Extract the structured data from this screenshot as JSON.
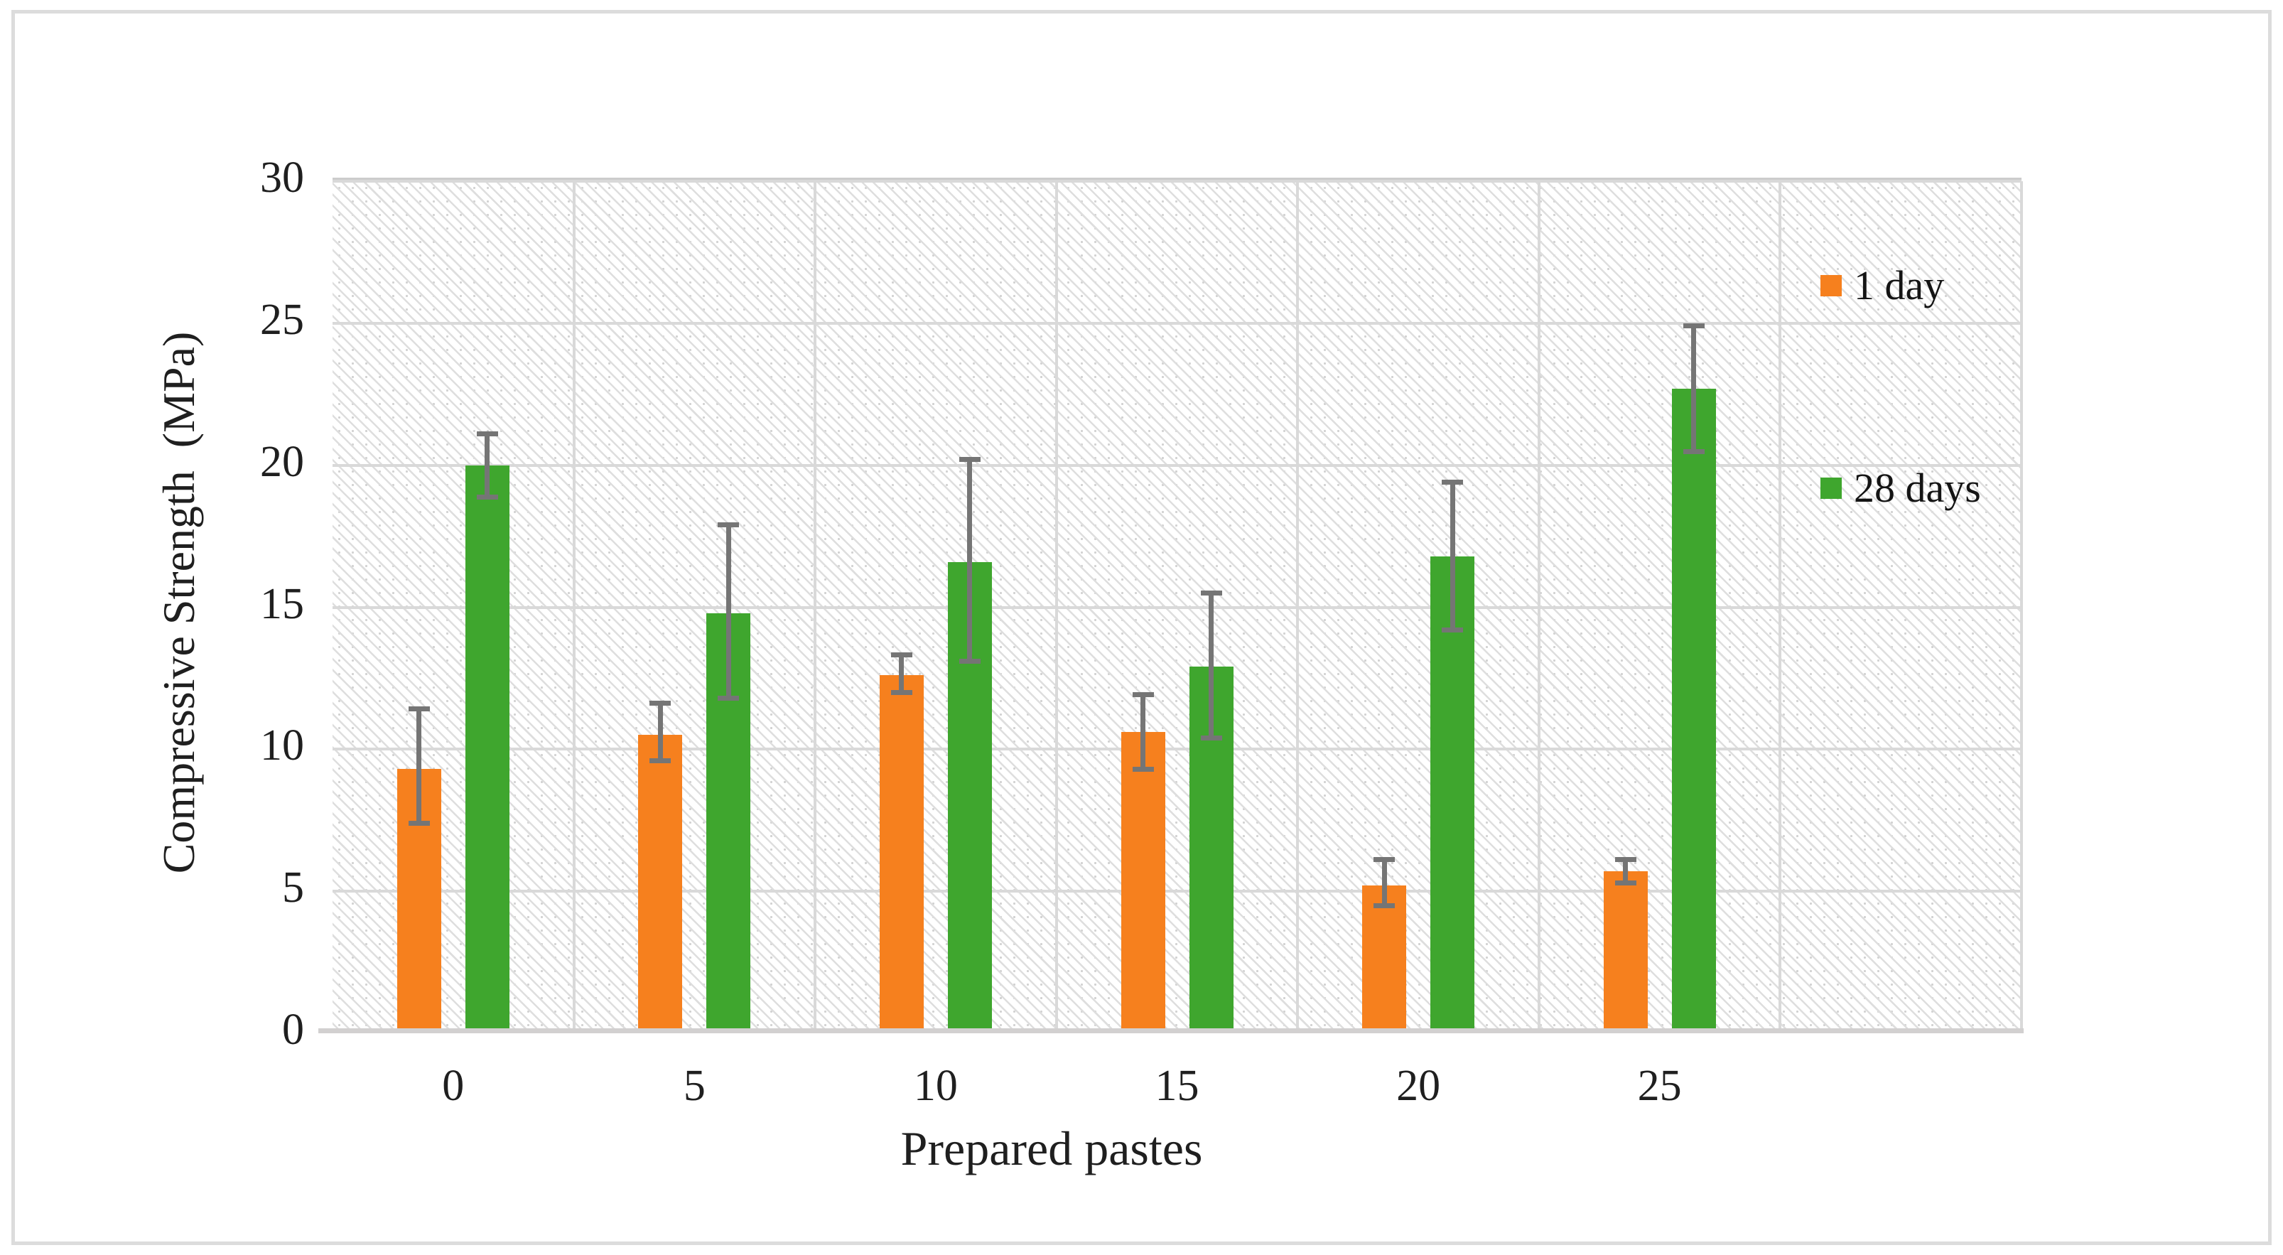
{
  "figure": {
    "background": "#ffffff",
    "border_color": "#dcdcdc"
  },
  "chart_data": {
    "type": "bar",
    "title": "",
    "xlabel": "Prepared pastes",
    "ylabel": "Compressive Strength  (MPa)",
    "categories": [
      "0",
      "5",
      "10",
      "15",
      "20",
      "25"
    ],
    "series": [
      {
        "name": "1 day",
        "color": "#f6801e",
        "values": [
          9.3,
          10.5,
          12.6,
          10.6,
          5.2,
          5.7
        ],
        "error_low": [
          7.3,
          9.5,
          11.9,
          9.2,
          4.4,
          5.2
        ],
        "error_high": [
          11.5,
          11.7,
          13.4,
          12.0,
          6.2,
          6.2
        ]
      },
      {
        "name": "28 days",
        "color": "#3fa62e",
        "values": [
          20.0,
          14.8,
          16.6,
          12.9,
          16.8,
          22.7
        ],
        "error_low": [
          18.8,
          11.7,
          13.0,
          10.3,
          14.1,
          20.4
        ],
        "error_high": [
          21.2,
          18.0,
          20.3,
          15.6,
          19.5,
          25.0
        ]
      }
    ],
    "ylim": [
      0,
      30
    ],
    "ytick_step": 5,
    "yticks": [
      "0",
      "5",
      "10",
      "15",
      "20",
      "25",
      "30"
    ],
    "x_slots": 7,
    "grid": true,
    "gridline_color": "#d9d9d9",
    "error_bar_color": "#757575",
    "legend_position": "inside-right",
    "legend": [
      "1 day",
      "28 days"
    ]
  }
}
